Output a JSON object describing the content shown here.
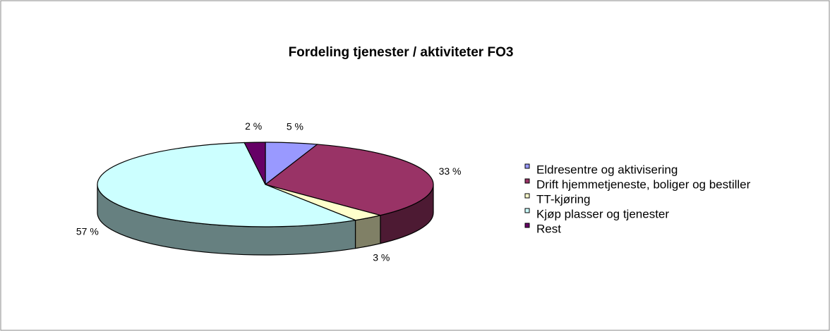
{
  "chart_data": {
    "type": "pie",
    "title": "Fordeling tjenester / aktiviteter FO3",
    "categories": [
      "Eldresentre og aktivisering",
      "Drift hjemmetjeneste, boliger og bestiller",
      "TT-kjøring",
      "Kjøp plasser og tjenester",
      "Rest"
    ],
    "values": [
      5,
      33,
      3,
      57,
      2
    ],
    "value_labels": [
      "5 %",
      "33 %",
      "3 %",
      "57 %",
      "2 %"
    ],
    "colors": [
      "#9999ff",
      "#993366",
      "#ffffcc",
      "#ccffff",
      "#660066"
    ],
    "legend": "right"
  }
}
